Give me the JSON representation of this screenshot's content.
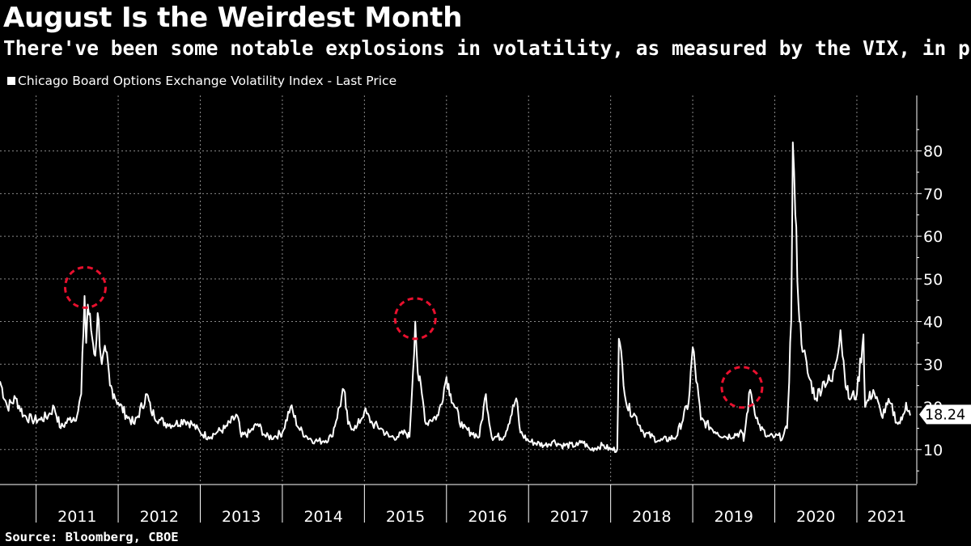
{
  "title": "August Is the Weirdest Month",
  "subtitle": "There've been some notable explosions in volatility, as measured by the VIX, in previous Augusts",
  "source": "Source: Bloomberg, CBOE",
  "colors": {
    "background": "#000000",
    "line": "#ffffff",
    "highlight": "#e8102e",
    "grid": "#8a8a8a"
  },
  "chart_data": {
    "type": "line",
    "series": [
      {
        "name": "Chicago Board Options Exchange Volatility Index - Last Price",
        "x": [
          2010.56,
          2010.65,
          2010.75,
          2010.85,
          2010.95,
          2011.05,
          2011.15,
          2011.22,
          2011.3,
          2011.4,
          2011.5,
          2011.55,
          2011.59,
          2011.61,
          2011.63,
          2011.67,
          2011.72,
          2011.75,
          2011.8,
          2011.85,
          2011.9,
          2011.95,
          2012.0,
          2012.1,
          2012.2,
          2012.35,
          2012.4,
          2012.5,
          2012.6,
          2012.7,
          2012.8,
          2012.9,
          2013.0,
          2013.1,
          2013.2,
          2013.3,
          2013.45,
          2013.5,
          2013.6,
          2013.7,
          2013.8,
          2013.9,
          2014.0,
          2014.1,
          2014.2,
          2014.3,
          2014.4,
          2014.5,
          2014.6,
          2014.75,
          2014.8,
          2014.9,
          2015.0,
          2015.1,
          2015.2,
          2015.3,
          2015.4,
          2015.5,
          2015.55,
          2015.62,
          2015.65,
          2015.7,
          2015.75,
          2015.8,
          2015.9,
          2016.0,
          2016.05,
          2016.1,
          2016.2,
          2016.3,
          2016.4,
          2016.48,
          2016.55,
          2016.7,
          2016.85,
          2016.9,
          2017.0,
          2017.2,
          2017.3,
          2017.4,
          2017.6,
          2017.65,
          2017.75,
          2017.9,
          2018.0,
          2018.08,
          2018.1,
          2018.2,
          2018.3,
          2018.4,
          2018.6,
          2018.8,
          2018.95,
          2019.0,
          2019.1,
          2019.3,
          2019.4,
          2019.6,
          2019.62,
          2019.7,
          2019.8,
          2019.9,
          2020.0,
          2020.1,
          2020.15,
          2020.2,
          2020.22,
          2020.25,
          2020.3,
          2020.35,
          2020.4,
          2020.5,
          2020.6,
          2020.7,
          2020.8,
          2020.85,
          2020.9,
          2021.0,
          2021.08,
          2021.1,
          2021.2,
          2021.3,
          2021.4,
          2021.5,
          2021.55,
          2021.6,
          2021.65
        ],
        "y": [
          26,
          20,
          22,
          18,
          17,
          17,
          18,
          20,
          15,
          17,
          18,
          23,
          46,
          35,
          44,
          38,
          32,
          42,
          30,
          33,
          25,
          23,
          21,
          18,
          16,
          23,
          19,
          17,
          16,
          16,
          17,
          16,
          14,
          13,
          14,
          15,
          18,
          13,
          14,
          16,
          13,
          13,
          14,
          20,
          15,
          13,
          12,
          12,
          13,
          24,
          16,
          15,
          19,
          16,
          15,
          13,
          13,
          14,
          13,
          40,
          28,
          23,
          16,
          17,
          18,
          27,
          23,
          20,
          15,
          14,
          13,
          23,
          13,
          13,
          22,
          14,
          12,
          11,
          12,
          11,
          11,
          12,
          10,
          11,
          10,
          10,
          36,
          20,
          18,
          14,
          12,
          13,
          21,
          34,
          17,
          14,
          13,
          14,
          12,
          24,
          16,
          13,
          13,
          13,
          15,
          40,
          82,
          65,
          40,
          33,
          28,
          22,
          26,
          26,
          38,
          28,
          22,
          23,
          37,
          20,
          24,
          18,
          21,
          16,
          17,
          21,
          18
        ]
      }
    ],
    "legend": "Chicago Board Options Exchange Volatility Index - Last Price",
    "x_ticks": [
      "2011",
      "2012",
      "2013",
      "2014",
      "2015",
      "2016",
      "2017",
      "2018",
      "2019",
      "2020",
      "2021"
    ],
    "y_ticks": [
      10,
      20,
      30,
      40,
      50,
      60,
      70,
      80
    ],
    "ylim": [
      2,
      93
    ],
    "xlim": [
      2010.56,
      2021.73
    ],
    "last_value": "18.24",
    "annotations": [
      {
        "label": "August 2011 spike",
        "x": 2011.6,
        "y": 48
      },
      {
        "label": "August 2015 spike",
        "x": 2015.62,
        "y": 40.7
      },
      {
        "label": "August 2019 spike",
        "x": 2019.6,
        "y": 24.6
      }
    ]
  }
}
